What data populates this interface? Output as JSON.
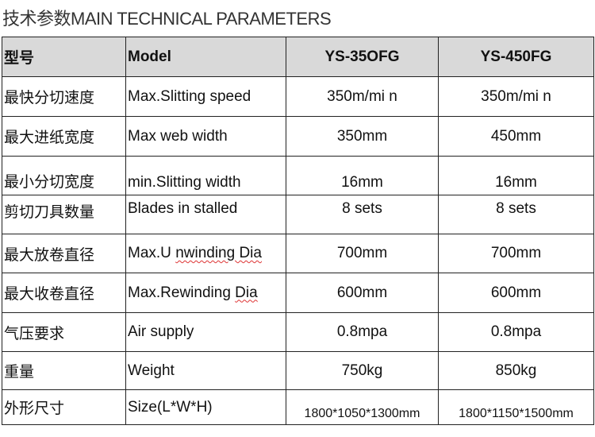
{
  "title": "技术参数MAIN TECHNICAL PARAMETERS",
  "header": {
    "cn": "型号",
    "en": "Model",
    "m1": "YS-35OFG",
    "m2": "YS-450FG"
  },
  "rows": [
    {
      "cn": "最快分切速度",
      "en": "Max.Slitting speed",
      "m1": "350m/mi n",
      "m2": "350m/mi n"
    },
    {
      "cn": "最大进纸宽度",
      "en": "Max web width",
      "m1": "350mm",
      "m2": "450mm"
    },
    {
      "cn": "最小分切宽度",
      "en": "min.Slitting width",
      "m1": "16mm",
      "m2": "16mm"
    },
    {
      "cn": "剪切刀具数量",
      "en": "Blades in stalled",
      "m1": "8 sets",
      "m2": "8 sets"
    },
    {
      "cn": "最大放卷直径",
      "en_a": "Max.U ",
      "en_b": "nwinding Dia",
      "m1": "700mm",
      "m2": "700mm"
    },
    {
      "cn": "最大收卷直径",
      "en_a": "Max.Rewinding ",
      "en_b": "Dia",
      "m1": "600mm",
      "m2": "600mm"
    },
    {
      "cn": "气压要求",
      "en": "Air supply",
      "m1": "0.8mpa",
      "m2": "0.8mpa"
    },
    {
      "cn": "重量",
      "en": "Weight",
      "m1": "750kg",
      "m2": "850kg"
    },
    {
      "cn": "外形尺寸",
      "en": "Size(L*W*H)",
      "m1": "1800*1050*1300mm",
      "m2": "1800*1150*1500mm"
    }
  ]
}
